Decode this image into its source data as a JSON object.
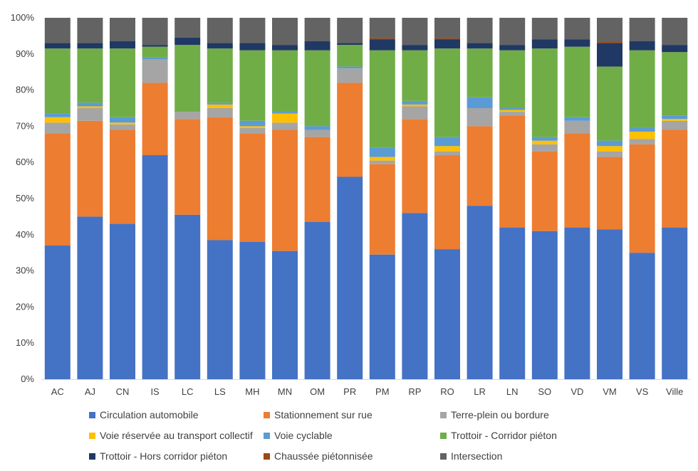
{
  "chart_data": {
    "type": "bar",
    "stacked": true,
    "normalized": true,
    "title": "",
    "xlabel": "",
    "ylabel": "",
    "ylim": [
      0,
      100
    ],
    "y_ticks": [
      "0%",
      "10%",
      "20%",
      "30%",
      "40%",
      "50%",
      "60%",
      "70%",
      "80%",
      "90%",
      "100%"
    ],
    "grid": false,
    "legend_position": "bottom",
    "categories": [
      "AC",
      "AJ",
      "CN",
      "IS",
      "LC",
      "LS",
      "MH",
      "MN",
      "OM",
      "PR",
      "PM",
      "RP",
      "RO",
      "LR",
      "LN",
      "SO",
      "VD",
      "VM",
      "VS",
      "Ville"
    ],
    "series": [
      {
        "name": "Circulation automobile",
        "color": "#4472C4",
        "values": [
          37,
          45,
          43,
          62,
          45.5,
          38.5,
          38,
          35.5,
          43.5,
          56,
          34.5,
          46,
          36,
          48,
          42,
          41,
          42,
          41.5,
          35,
          42
        ]
      },
      {
        "name": "Stationnement sur rue",
        "color": "#ED7D31",
        "values": [
          31,
          26.5,
          26,
          20,
          26.5,
          34,
          30,
          33.5,
          23.5,
          26,
          25,
          26,
          26,
          22,
          31,
          22,
          26,
          20,
          30,
          27
        ]
      },
      {
        "name": "Terre-plein ou bordure",
        "color": "#A5A5A5",
        "values": [
          3,
          3.5,
          1.5,
          6.5,
          2,
          2.5,
          1.5,
          2,
          2,
          4,
          1,
          3.5,
          1,
          5,
          1,
          2,
          3.5,
          1.5,
          1.5,
          2.5
        ]
      },
      {
        "name": "Voie réservée au transport collectif",
        "color": "#FFC000",
        "values": [
          1.5,
          0.5,
          0.5,
          0,
          0,
          1,
          0.5,
          2.5,
          0,
          0,
          1,
          0.5,
          1.5,
          0,
          0.5,
          1,
          0,
          1.5,
          2,
          0.5
        ]
      },
      {
        "name": "Voie cyclable",
        "color": "#5B9BD5",
        "values": [
          1,
          1,
          1.5,
          0.5,
          0,
          0.5,
          1.5,
          0.5,
          1,
          0.5,
          2.5,
          1,
          2.5,
          3,
          0.5,
          1,
          1,
          1.5,
          1,
          1
        ]
      },
      {
        "name": "Trottoir - Corridor piéton",
        "color": "#70AD47",
        "values": [
          18,
          15,
          19,
          3,
          18.5,
          15,
          19.5,
          17,
          21,
          6,
          27,
          14,
          24.5,
          13.5,
          16,
          24.5,
          19.5,
          20.5,
          21.5,
          17.5
        ]
      },
      {
        "name": "Trottoir - Hors corridor piéton",
        "color": "#203864",
        "values": [
          1.5,
          1.5,
          2,
          0.5,
          2,
          1.5,
          2,
          1.5,
          2.5,
          0.5,
          3,
          1.5,
          2.5,
          1.5,
          1.5,
          2.5,
          2,
          6.5,
          2.5,
          2
        ]
      },
      {
        "name": "Chaussée piétonnisée",
        "color": "#9E480E",
        "values": [
          0,
          0,
          0,
          0,
          0,
          0,
          0,
          0,
          0,
          0,
          0.3,
          0,
          0.3,
          0,
          0,
          0,
          0,
          0.3,
          0,
          0
        ]
      },
      {
        "name": "Intersection",
        "color": "#636363",
        "values": [
          7,
          7,
          6.5,
          7.5,
          5.5,
          7,
          7,
          7.5,
          6.5,
          7,
          5.7,
          7.5,
          5.7,
          7,
          7.5,
          6,
          6,
          6.7,
          6.5,
          7.5
        ]
      }
    ]
  }
}
